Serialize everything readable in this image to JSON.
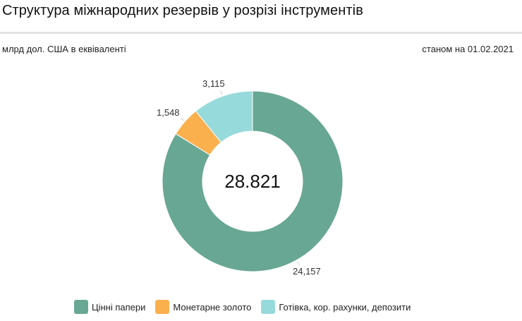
{
  "header": {
    "title": "Структура міжнародних резервів у розрізі інструментів",
    "unit": "млрд дол. США в еквіваленті",
    "date": "станом на 01.02.2021"
  },
  "center_total": "28.821",
  "labels": {
    "securities": "24,157",
    "gold": "1,548",
    "cash": "3,115"
  },
  "legend": [
    {
      "label": "Цінні папери",
      "color": "#68a794"
    },
    {
      "label": "Монетарне золото",
      "color": "#fbb04e"
    },
    {
      "label": "Готівка, кор. рахунки, депозити",
      "color": "#97dadb"
    }
  ],
  "chart_data": {
    "type": "pie",
    "donut": true,
    "title": "Структура міжнародних резервів у розрізі інструментів",
    "subtitle": "млрд дол. США в еквіваленті",
    "annotation": "станом на 01.02.2021",
    "center_label": "28.821",
    "categories": [
      "Цінні папери",
      "Монетарне золото",
      "Готівка, кор. рахунки, депозити"
    ],
    "values": [
      24.157,
      1.548,
      3.115
    ],
    "colors": [
      "#68a794",
      "#fbb04e",
      "#97dadb"
    ],
    "legend_position": "bottom"
  }
}
